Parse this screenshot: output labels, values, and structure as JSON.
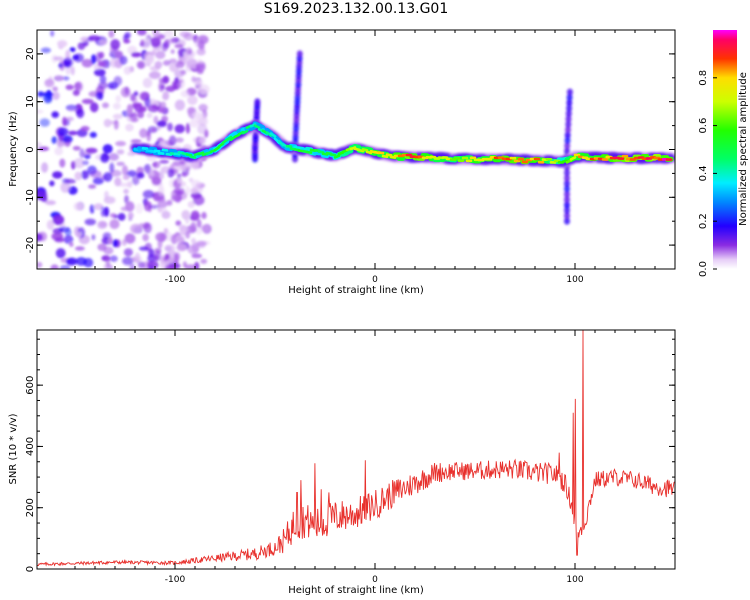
{
  "title": "S169.2023.132.00.13.G01",
  "chart_data": [
    {
      "type": "heatmap",
      "xlabel": "Height of straight line (km)",
      "ylabel": "Frequency (Hz)",
      "xlim": [
        -169,
        150
      ],
      "ylim": [
        -25,
        25
      ],
      "xticks": [
        -100,
        0,
        100
      ],
      "yticks": [
        -20,
        -10,
        0,
        10,
        20
      ],
      "colorbar": {
        "label": "Normalized spectral amplitude",
        "range": [
          0,
          1
        ],
        "ticks": [
          "0.0",
          "0.2",
          "0.4",
          "0.6",
          "0.8"
        ],
        "colormap": "rainbow (white-violet-blue-cyan-green-yellow-red-magenta)"
      },
      "ridge_frequency": {
        "x": [
          -120,
          -100,
          -90,
          -80,
          -70,
          -60,
          -55,
          -50,
          -45,
          -40,
          -30,
          -20,
          -10,
          0,
          10,
          20,
          40,
          60,
          80,
          95,
          100,
          120,
          148
        ],
        "y": [
          0.3,
          -0.8,
          -1.5,
          0.0,
          3.0,
          5.0,
          4.0,
          2.5,
          0.5,
          0.2,
          -0.5,
          -1.3,
          0.3,
          -0.7,
          -1.5,
          -1.5,
          -2.0,
          -2.0,
          -2.3,
          -2.5,
          -1.5,
          -1.8,
          -1.8
        ]
      },
      "ridge_amplitude": {
        "x": [
          -120,
          -100,
          -90,
          -80,
          -70,
          -60,
          -55,
          -50,
          -45,
          -40,
          -30,
          -20,
          -10,
          0,
          10,
          20,
          40,
          60,
          80,
          95,
          100,
          120,
          148
        ],
        "y": [
          0.35,
          0.45,
          0.5,
          0.55,
          0.55,
          0.45,
          0.5,
          0.4,
          0.4,
          0.6,
          0.55,
          0.55,
          0.75,
          0.8,
          0.85,
          0.95,
          0.7,
          0.9,
          0.9,
          0.6,
          0.85,
          0.95,
          1.0
        ]
      },
      "noise_region_x": [
        -169,
        -90
      ],
      "spike_features": [
        {
          "x": -40,
          "f_range": [
            -2,
            20
          ]
        },
        {
          "x": -60,
          "f_range": [
            -2,
            10
          ]
        },
        {
          "x": 96,
          "f_range": [
            -15,
            12
          ]
        }
      ]
    },
    {
      "type": "line",
      "xlabel": "Height of straight line (km)",
      "ylabel": "SNR (10 * v/v)",
      "xlim": [
        -169,
        150
      ],
      "ylim": [
        0,
        780
      ],
      "xticks": [
        -100,
        0,
        100
      ],
      "yticks": [
        0,
        200,
        400,
        600
      ],
      "series_color": "#e8302c",
      "trend": {
        "x": [
          -169,
          -130,
          -100,
          -80,
          -60,
          -50,
          -45,
          -40,
          -35,
          -30,
          -20,
          -10,
          0,
          10,
          20,
          30,
          40,
          50,
          60,
          70,
          80,
          90,
          95,
          98,
          100,
          102,
          105,
          110,
          120,
          130,
          140,
          150
        ],
        "y": [
          15,
          22,
          20,
          35,
          50,
          70,
          95,
          150,
          160,
          140,
          170,
          180,
          210,
          250,
          280,
          315,
          320,
          320,
          325,
          325,
          315,
          310,
          280,
          220,
          150,
          120,
          150,
          290,
          300,
          290,
          270,
          260
        ]
      },
      "noise_amplitude": {
        "x": [
          -169,
          -100,
          -80,
          -50,
          -40,
          -20,
          0,
          20,
          40,
          90,
          100,
          110,
          150
        ],
        "y": [
          5,
          6,
          12,
          25,
          60,
          55,
          50,
          40,
          30,
          35,
          30,
          28,
          30
        ]
      },
      "spikes": [
        {
          "x": -39,
          "y": 250
        },
        {
          "x": -37,
          "y": 290
        },
        {
          "x": -30,
          "y": 345
        },
        {
          "x": -27,
          "y": 260
        },
        {
          "x": -23,
          "y": 250
        },
        {
          "x": -5,
          "y": 355
        },
        {
          "x": 92,
          "y": 380
        },
        {
          "x": 99,
          "y": 510
        },
        {
          "x": 100,
          "y": 555
        },
        {
          "x": 101,
          "y": 45
        },
        {
          "x": 104,
          "y": 780
        }
      ]
    }
  ]
}
